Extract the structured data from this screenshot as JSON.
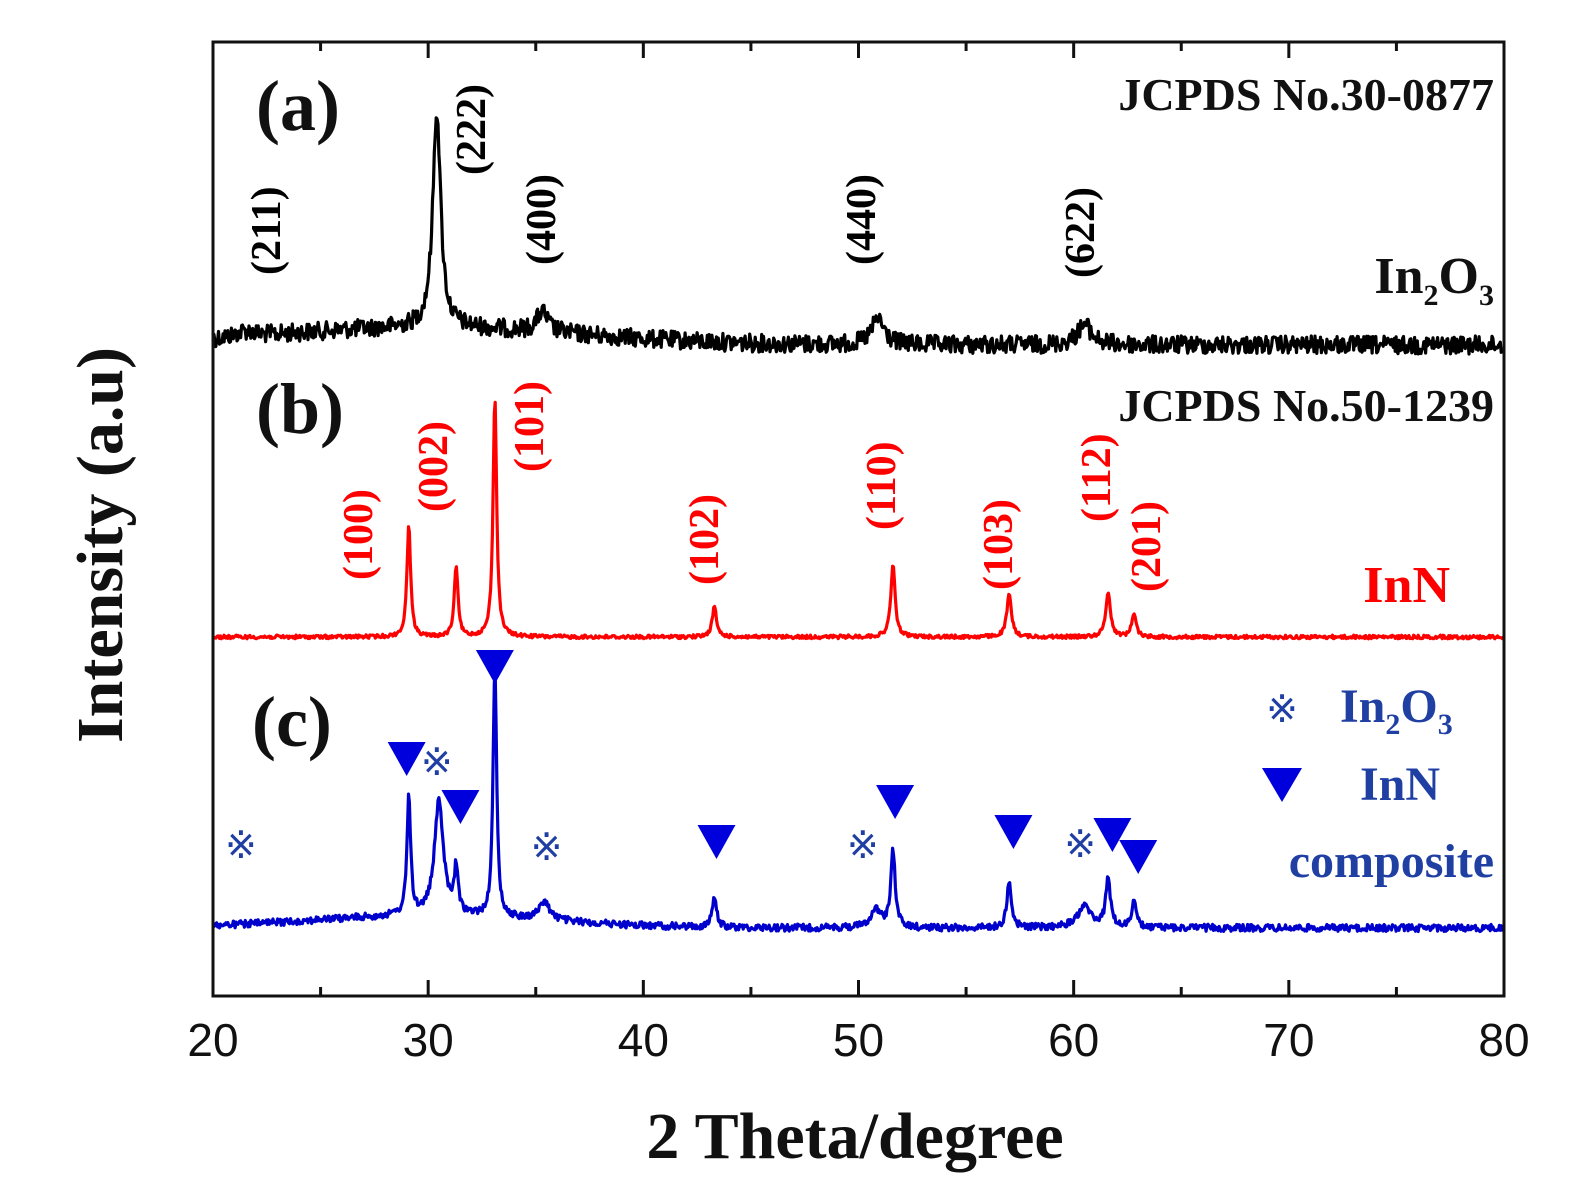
{
  "chart_data": {
    "type": "line",
    "xlabel": "2 Theta/degree",
    "ylabel": "Intensity (a.u)",
    "xlim": [
      20,
      80
    ],
    "xticks": [
      20,
      30,
      40,
      50,
      60,
      70,
      80
    ],
    "colors": {
      "a": "#000000",
      "b": "#ff0000",
      "c": "#0000cc",
      "legend": "#1f3fa3"
    },
    "panels": [
      {
        "id": "a",
        "panel_label": "(a)",
        "reference": "JCPDS No.30-0877",
        "material": {
          "base": "In",
          "sub1": "2",
          "mid": "O",
          "sub2": "3"
        },
        "baseline": 0.52,
        "peaks": [
          {
            "x": 21.5,
            "height": 0.02,
            "width": 0.5,
            "hkl": "(211)"
          },
          {
            "x": 30.4,
            "height": 0.75,
            "width": 0.22,
            "hkl": "(222)"
          },
          {
            "x": 35.3,
            "height": 0.07,
            "width": 0.3,
            "hkl": "(400)"
          },
          {
            "x": 50.9,
            "height": 0.09,
            "width": 0.35,
            "hkl": "(440)"
          },
          {
            "x": 60.5,
            "height": 0.07,
            "width": 0.4,
            "hkl": "(622)"
          }
        ]
      },
      {
        "id": "b",
        "panel_label": "(b)",
        "reference": "JCPDS No.50-1239",
        "material": "InN",
        "baseline": 0.0,
        "peaks": [
          {
            "x": 29.1,
            "height": 0.38,
            "width": 0.1,
            "hkl": "(100)"
          },
          {
            "x": 31.3,
            "height": 0.24,
            "width": 0.1,
            "hkl": "(002)"
          },
          {
            "x": 33.1,
            "height": 0.8,
            "width": 0.1,
            "hkl": "(101)"
          },
          {
            "x": 43.3,
            "height": 0.1,
            "width": 0.12,
            "hkl": "(102)"
          },
          {
            "x": 51.6,
            "height": 0.24,
            "width": 0.12,
            "hkl": "(110)"
          },
          {
            "x": 57.0,
            "height": 0.14,
            "width": 0.13,
            "hkl": "(103)"
          },
          {
            "x": 61.6,
            "height": 0.15,
            "width": 0.13,
            "hkl": "(112)"
          },
          {
            "x": 62.8,
            "height": 0.08,
            "width": 0.12,
            "hkl": "(201)"
          }
        ]
      },
      {
        "id": "c",
        "panel_label": "(c)",
        "material": "composite",
        "baseline": 0.08,
        "peaks": [
          {
            "x": 29.1,
            "height": 0.4,
            "width": 0.1
          },
          {
            "x": 30.5,
            "height": 0.38,
            "width": 0.25
          },
          {
            "x": 31.3,
            "height": 0.15,
            "width": 0.1
          },
          {
            "x": 33.1,
            "height": 0.83,
            "width": 0.1
          },
          {
            "x": 35.4,
            "height": 0.06,
            "width": 0.3
          },
          {
            "x": 43.3,
            "height": 0.1,
            "width": 0.12
          },
          {
            "x": 50.8,
            "height": 0.06,
            "width": 0.3
          },
          {
            "x": 51.6,
            "height": 0.26,
            "width": 0.12
          },
          {
            "x": 57.0,
            "height": 0.15,
            "width": 0.13
          },
          {
            "x": 60.5,
            "height": 0.07,
            "width": 0.4
          },
          {
            "x": 61.6,
            "height": 0.16,
            "width": 0.13
          },
          {
            "x": 62.8,
            "height": 0.09,
            "width": 0.12
          }
        ],
        "markers_in2o3": [
          21.3,
          30.4,
          35.5,
          50.2,
          60.3
        ],
        "markers_inn": [
          29.0,
          31.5,
          33.1,
          43.4,
          51.7,
          57.2,
          61.8,
          63.0
        ],
        "legend": {
          "in2o3_symbol": "※",
          "in2o3_label": {
            "base": "In",
            "sub1": "2",
            "mid": "O",
            "sub2": "3"
          },
          "inn_label": "InN",
          "composite_label": "composite"
        }
      }
    ]
  }
}
